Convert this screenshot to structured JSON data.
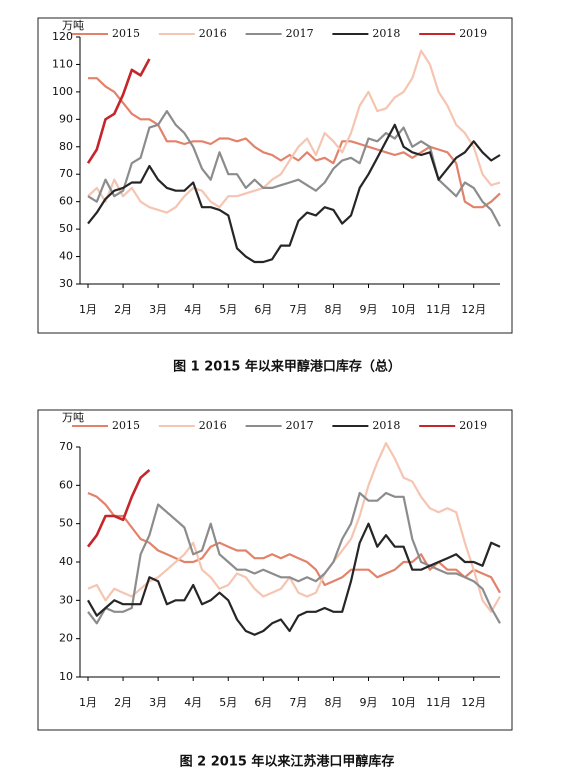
{
  "chart_data": [
    {
      "type": "line",
      "title": "图 1 2015 年以来甲醇港口库存（总）",
      "ylabel": "万吨",
      "legend": "top",
      "x": [
        1,
        2,
        3,
        4,
        5,
        6,
        7,
        8,
        9,
        10,
        11,
        12,
        13,
        14,
        15,
        16,
        17,
        18,
        19,
        20,
        21,
        22,
        23,
        24,
        25,
        26,
        27,
        28,
        29,
        30,
        31,
        32,
        33,
        34,
        35,
        36,
        37,
        38,
        39,
        40,
        41,
        42,
        43,
        44,
        45,
        46,
        47,
        48
      ],
      "xlim": [
        1,
        48
      ],
      "xticks": [
        {
          "value": 1,
          "label": "1月"
        },
        {
          "value": 5,
          "label": "2月"
        },
        {
          "value": 9,
          "label": "3月"
        },
        {
          "value": 13,
          "label": "4月"
        },
        {
          "value": 17,
          "label": "5月"
        },
        {
          "value": 21,
          "label": "6月"
        },
        {
          "value": 25,
          "label": "7月"
        },
        {
          "value": 29,
          "label": "8月"
        },
        {
          "value": 33,
          "label": "9月"
        },
        {
          "value": 37,
          "label": "10月"
        },
        {
          "value": 41,
          "label": "11月"
        },
        {
          "value": 45,
          "label": "12月"
        }
      ],
      "ylim": [
        30,
        120
      ],
      "yticks": [
        30,
        40,
        50,
        60,
        70,
        80,
        90,
        100,
        110,
        120
      ],
      "series": [
        {
          "name": "2015",
          "color": "#e3826a",
          "values": [
            105,
            105,
            102,
            100,
            96,
            92,
            90,
            90,
            88,
            82,
            82,
            81,
            82,
            82,
            81,
            83,
            83,
            82,
            83,
            80,
            78,
            77,
            75,
            77,
            75,
            78,
            75,
            76,
            74,
            82,
            82,
            81,
            80,
            79,
            78,
            77,
            78,
            76,
            78,
            80,
            79,
            78,
            74,
            60,
            58,
            58,
            60,
            63
          ]
        },
        {
          "name": "2016",
          "color": "#f5c5b2",
          "values": [
            62,
            65,
            60,
            68,
            62,
            65,
            60,
            58,
            57,
            56,
            58,
            62,
            65,
            64,
            60,
            58,
            62,
            62,
            63,
            64,
            65,
            68,
            70,
            75,
            80,
            83,
            77,
            85,
            82,
            78,
            85,
            95,
            100,
            93,
            94,
            98,
            100,
            105,
            115,
            110,
            100,
            95,
            88,
            85,
            80,
            70,
            66,
            67
          ]
        },
        {
          "name": "2017",
          "color": "#8c8c8c",
          "values": [
            62,
            60,
            68,
            62,
            64,
            74,
            76,
            87,
            88,
            93,
            88,
            85,
            80,
            72,
            68,
            78,
            70,
            70,
            65,
            68,
            65,
            65,
            66,
            67,
            68,
            66,
            64,
            67,
            72,
            75,
            76,
            74,
            83,
            82,
            85,
            83,
            87,
            80,
            82,
            80,
            68,
            65,
            62,
            67,
            65,
            60,
            57,
            51
          ]
        },
        {
          "name": "2018",
          "color": "#262626",
          "values": [
            52,
            56,
            61,
            64,
            65,
            67,
            67,
            73,
            68,
            65,
            64,
            64,
            67,
            58,
            58,
            57,
            55,
            43,
            40,
            38,
            38,
            39,
            44,
            44,
            53,
            56,
            55,
            58,
            57,
            52,
            55,
            65,
            70,
            76,
            82,
            88,
            80,
            78,
            77,
            78,
            68,
            72,
            76,
            78,
            82,
            78,
            75,
            77
          ]
        },
        {
          "name": "2019",
          "color": "#c4262b",
          "values": [
            74,
            79,
            90,
            92,
            99,
            108,
            106,
            112,
            null,
            null,
            null,
            null,
            null,
            null,
            null,
            null,
            null,
            null,
            null,
            null,
            null,
            null,
            null,
            null,
            null,
            null,
            null,
            null,
            null,
            null,
            null,
            null,
            null,
            null,
            null,
            null,
            null,
            null,
            null,
            null,
            null,
            null,
            null,
            null,
            null,
            null,
            null,
            null
          ]
        }
      ]
    },
    {
      "type": "line",
      "title": "图 2 2015 年以来江苏港口甲醇库存",
      "ylabel": "万吨",
      "legend": "top",
      "x": [
        1,
        2,
        3,
        4,
        5,
        6,
        7,
        8,
        9,
        10,
        11,
        12,
        13,
        14,
        15,
        16,
        17,
        18,
        19,
        20,
        21,
        22,
        23,
        24,
        25,
        26,
        27,
        28,
        29,
        30,
        31,
        32,
        33,
        34,
        35,
        36,
        37,
        38,
        39,
        40,
        41,
        42,
        43,
        44,
        45,
        46,
        47,
        48
      ],
      "xlim": [
        1,
        48
      ],
      "xticks": [
        {
          "value": 1,
          "label": "1月"
        },
        {
          "value": 5,
          "label": "2月"
        },
        {
          "value": 9,
          "label": "3月"
        },
        {
          "value": 13,
          "label": "4月"
        },
        {
          "value": 17,
          "label": "5月"
        },
        {
          "value": 21,
          "label": "6月"
        },
        {
          "value": 25,
          "label": "7月"
        },
        {
          "value": 29,
          "label": "8月"
        },
        {
          "value": 33,
          "label": "9月"
        },
        {
          "value": 37,
          "label": "10月"
        },
        {
          "value": 41,
          "label": "11月"
        },
        {
          "value": 45,
          "label": "12月"
        }
      ],
      "ylim": [
        10,
        70
      ],
      "yticks": [
        10,
        20,
        30,
        40,
        50,
        60,
        70
      ],
      "series": [
        {
          "name": "2015",
          "color": "#e3826a",
          "values": [
            58,
            57,
            55,
            52,
            52,
            49,
            46,
            45,
            43,
            42,
            41,
            40,
            40,
            41,
            44,
            45,
            44,
            43,
            43,
            41,
            41,
            42,
            41,
            42,
            41,
            40,
            38,
            34,
            35,
            36,
            38,
            38,
            38,
            36,
            37,
            38,
            40,
            40,
            42,
            38,
            40,
            38,
            38,
            36,
            38,
            37,
            36,
            32
          ]
        },
        {
          "name": "2016",
          "color": "#f5c5b2",
          "values": [
            33,
            34,
            30,
            33,
            32,
            31,
            33,
            35,
            36,
            38,
            40,
            42,
            45,
            38,
            36,
            33,
            34,
            37,
            36,
            33,
            31,
            32,
            33,
            36,
            32,
            31,
            32,
            37,
            40,
            43,
            46,
            52,
            60,
            66,
            71,
            67,
            62,
            61,
            57,
            54,
            53,
            54,
            53,
            45,
            38,
            30,
            27,
            31
          ]
        },
        {
          "name": "2017",
          "color": "#8c8c8c",
          "values": [
            27,
            24,
            28,
            27,
            27,
            28,
            42,
            47,
            55,
            53,
            51,
            49,
            42,
            43,
            50,
            42,
            40,
            38,
            38,
            37,
            38,
            37,
            36,
            36,
            35,
            36,
            35,
            37,
            40,
            46,
            50,
            58,
            56,
            56,
            58,
            57,
            57,
            46,
            40,
            39,
            38,
            37,
            37,
            36,
            35,
            33,
            28,
            24
          ]
        },
        {
          "name": "2018",
          "color": "#262626",
          "values": [
            30,
            26,
            28,
            30,
            29,
            29,
            29,
            36,
            35,
            29,
            30,
            30,
            34,
            29,
            30,
            32,
            30,
            25,
            22,
            21,
            22,
            24,
            25,
            22,
            26,
            27,
            27,
            28,
            27,
            27,
            35,
            45,
            50,
            44,
            47,
            44,
            44,
            38,
            38,
            39,
            40,
            41,
            42,
            40,
            40,
            39,
            45,
            44
          ]
        },
        {
          "name": "2019",
          "color": "#c4262b",
          "values": [
            44,
            47,
            52,
            52,
            51,
            57,
            62,
            64,
            null,
            null,
            null,
            null,
            null,
            null,
            null,
            null,
            null,
            null,
            null,
            null,
            null,
            null,
            null,
            null,
            null,
            null,
            null,
            null,
            null,
            null,
            null,
            null,
            null,
            null,
            null,
            null,
            null,
            null,
            null,
            null,
            null,
            null,
            null,
            null,
            null,
            null,
            null,
            null
          ]
        }
      ]
    }
  ]
}
